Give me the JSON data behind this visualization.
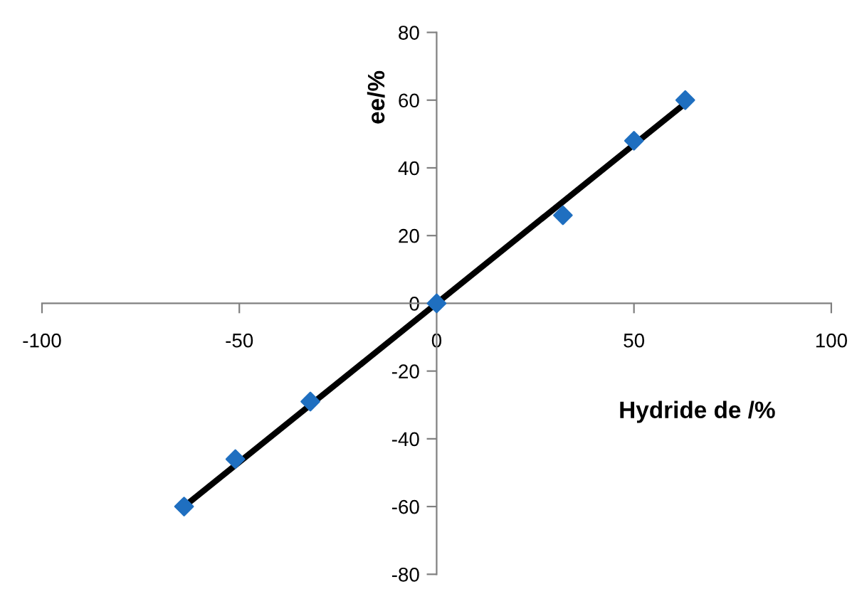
{
  "chart_data": {
    "type": "scatter",
    "xlabel": "Hydride de /%",
    "ylabel": "ee/%",
    "xlim": [
      -100,
      100
    ],
    "ylim": [
      -80,
      80
    ],
    "xticks": [
      -100,
      -50,
      0,
      50,
      100
    ],
    "yticks": [
      -80,
      -60,
      -40,
      -20,
      0,
      20,
      40,
      60,
      80
    ],
    "grid": false,
    "legend": false,
    "marker": "diamond",
    "series": [
      {
        "color": "#1f6fc0",
        "x": [
          -64,
          -51,
          -32,
          0,
          32,
          50,
          63
        ],
        "values": [
          -60,
          -46,
          -29,
          0,
          26,
          48,
          60
        ]
      },
      {
        "type": "line",
        "color": "#000000",
        "x": [
          -64,
          64
        ],
        "values": [
          -60,
          60
        ],
        "marker": "none",
        "line_style": "solid"
      }
    ]
  }
}
